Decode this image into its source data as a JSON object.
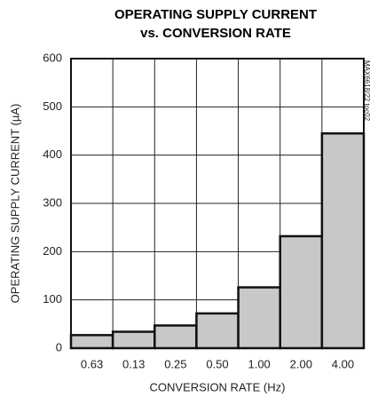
{
  "chart_data": {
    "type": "bar",
    "title": [
      "OPERATING SUPPLY CURRENT",
      "vs. CONVERSION RATE"
    ],
    "x_label": "CONVERSION RATE (Hz)",
    "y_label": "OPERATING SUPPLY CURRENT (µA)",
    "annotation": "MAX6618/22 toc02",
    "categories": [
      "0.63",
      "0.13",
      "0.25",
      "0.50",
      "1.00",
      "2.00",
      "4.00"
    ],
    "values": [
      27,
      34,
      47,
      72,
      126,
      232,
      445
    ],
    "color": "#c8c8c8",
    "ylim": [
      0,
      600
    ],
    "yticks": [
      0,
      100,
      200,
      300,
      400,
      500,
      600
    ],
    "grid": true
  }
}
